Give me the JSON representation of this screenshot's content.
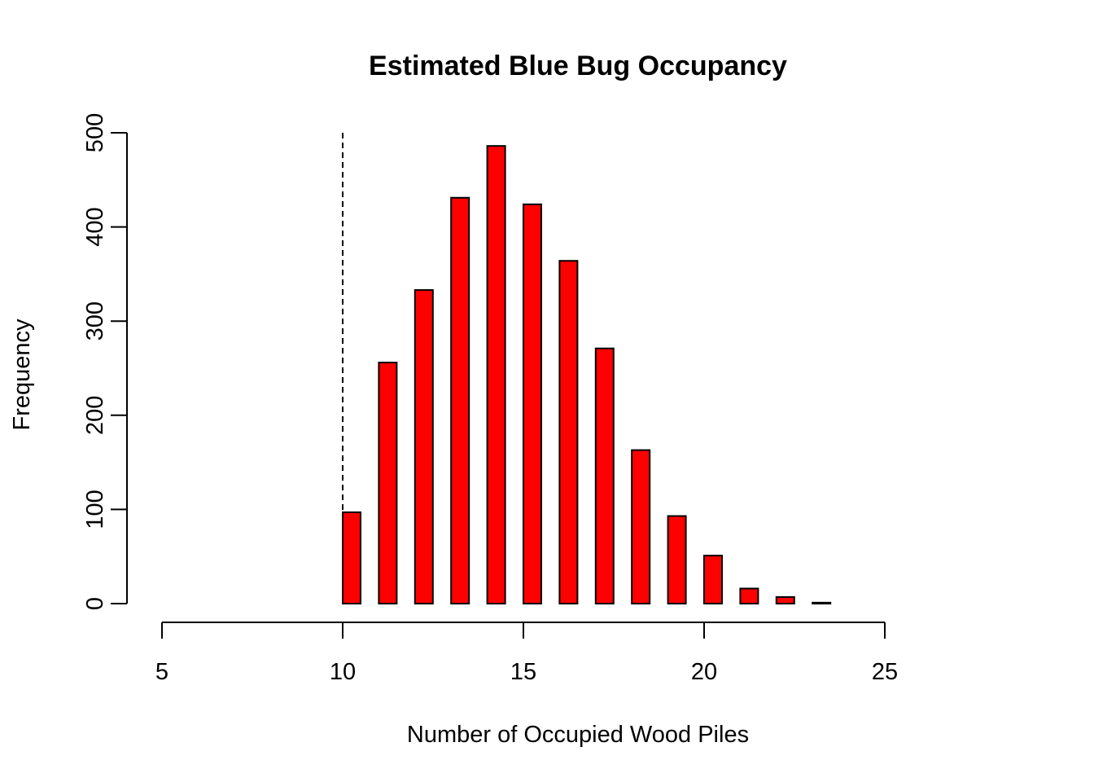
{
  "chart_data": {
    "type": "bar",
    "title": "Estimated Blue Bug Occupancy",
    "xlabel": "Number of Occupied Wood Piles",
    "ylabel": "Frequency",
    "x": [
      10,
      11,
      12,
      13,
      14,
      15,
      16,
      17,
      18,
      19,
      20,
      21,
      22,
      23,
      24
    ],
    "values": [
      97,
      256,
      333,
      431,
      486,
      424,
      364,
      271,
      163,
      93,
      51,
      16,
      7,
      1,
      0
    ],
    "xlim": [
      5,
      25
    ],
    "ylim": [
      0,
      500
    ],
    "x_ticks": [
      "5",
      "10",
      "15",
      "20",
      "25"
    ],
    "y_ticks": [
      "0",
      "100",
      "200",
      "300",
      "400",
      "500"
    ],
    "reference_line_x": 10,
    "bar_color": "#ff0000",
    "grid": false
  }
}
